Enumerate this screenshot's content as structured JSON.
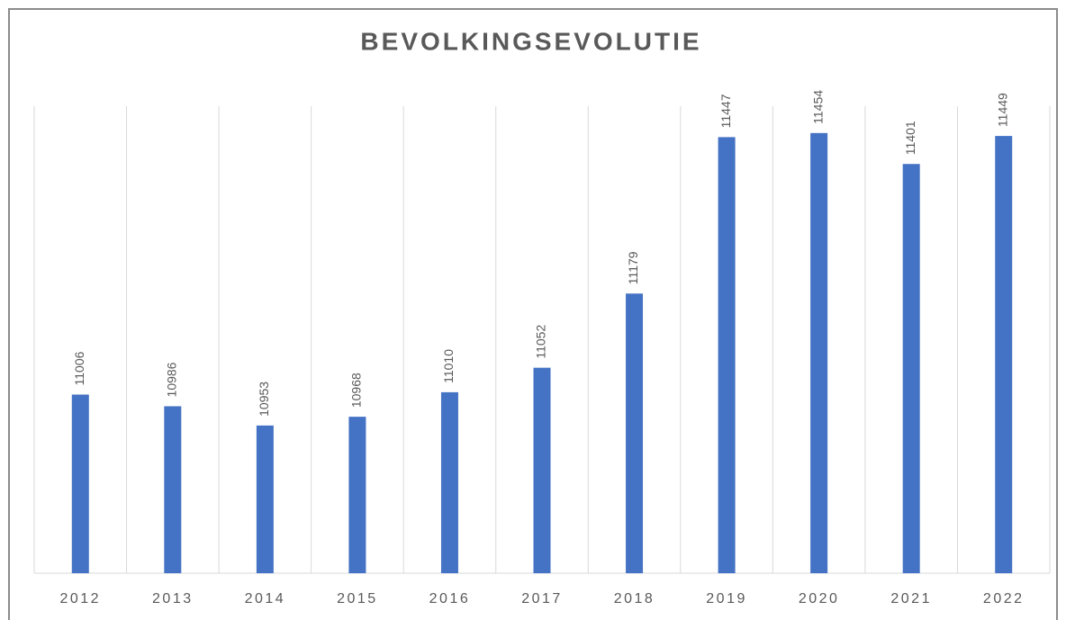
{
  "chart_data": {
    "type": "bar",
    "title": "BEVOLKINGSEVOLUTIE",
    "categories": [
      "2012",
      "2013",
      "2014",
      "2015",
      "2016",
      "2017",
      "2018",
      "2019",
      "2020",
      "2021",
      "2022"
    ],
    "values": [
      11006,
      10986,
      10953,
      10968,
      11010,
      11052,
      11179,
      11447,
      11454,
      11401,
      11449
    ],
    "color": "#4472c4",
    "ylim": [
      10700,
      11500
    ]
  }
}
